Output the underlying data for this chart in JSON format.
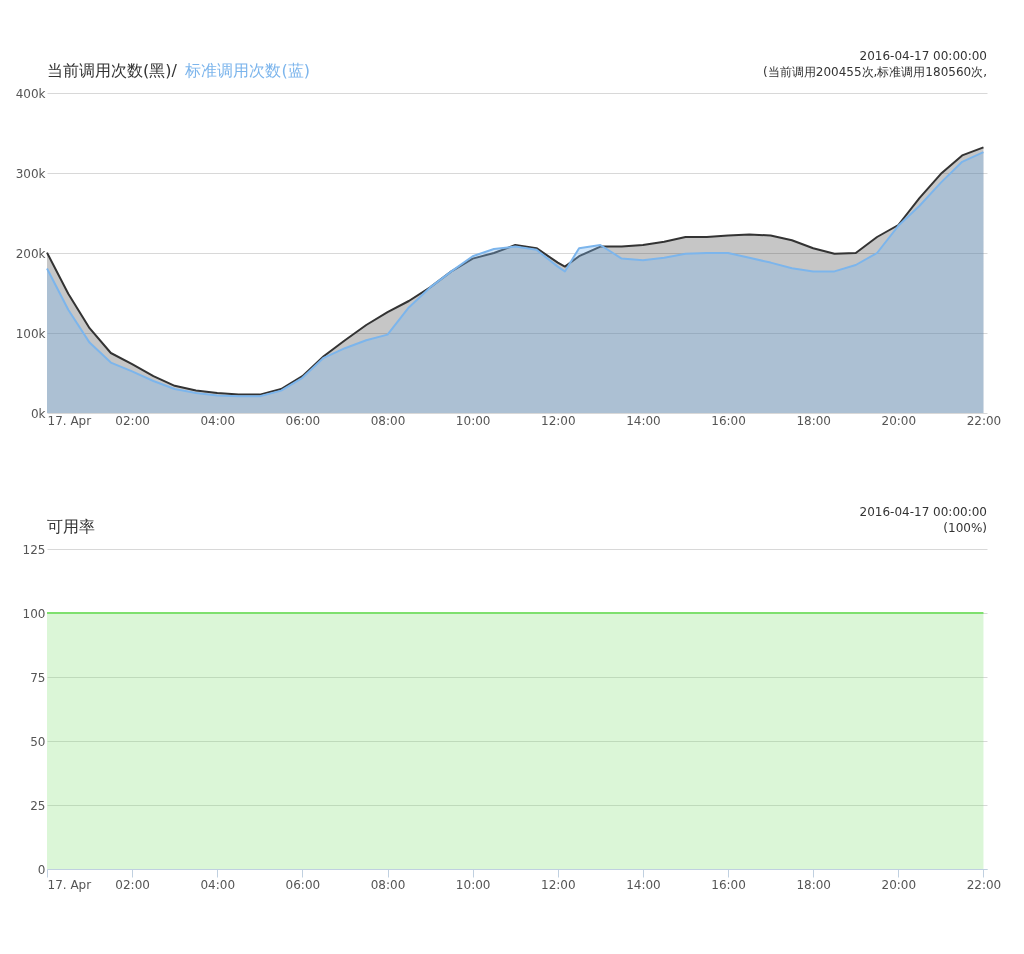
{
  "chart_data": [
    {
      "type": "area",
      "legend": "top left",
      "grid": "y",
      "x": [
        "2016-04-17T00:00",
        "2016-04-17T00:30",
        "2016-04-17T01:00",
        "2016-04-17T01:30",
        "2016-04-17T02:00",
        "2016-04-17T02:30",
        "2016-04-17T03:00",
        "2016-04-17T03:30",
        "2016-04-17T04:00",
        "2016-04-17T04:30",
        "2016-04-17T05:00",
        "2016-04-17T05:30",
        "2016-04-17T06:00",
        "2016-04-17T06:30",
        "2016-04-17T07:00",
        "2016-04-17T07:30",
        "2016-04-17T08:00",
        "2016-04-17T08:30",
        "2016-04-17T09:00",
        "2016-04-17T09:30",
        "2016-04-17T10:00",
        "2016-04-17T10:30",
        "2016-04-17T11:00",
        "2016-04-17T11:30",
        "2016-04-17T12:00",
        "2016-04-17T12:10",
        "2016-04-17T12:30",
        "2016-04-17T13:00",
        "2016-04-17T13:30",
        "2016-04-17T14:00",
        "2016-04-17T14:30",
        "2016-04-17T15:00",
        "2016-04-17T15:30",
        "2016-04-17T16:00",
        "2016-04-17T16:30",
        "2016-04-17T17:00",
        "2016-04-17T17:30",
        "2016-04-17T18:00",
        "2016-04-17T18:30",
        "2016-04-17T19:00",
        "2016-04-17T19:30",
        "2016-04-17T20:00",
        "2016-04-17T20:30",
        "2016-04-17T21:00",
        "2016-04-17T21:30",
        "2016-04-17T22:00"
      ],
      "series": [
        {
          "name": "当前调用次数(黑)/",
          "color": "#333333",
          "values": [
            200455,
            149000,
            106000,
            75000,
            61000,
            46000,
            34000,
            28000,
            25000,
            23000,
            23000,
            30000,
            46000,
            71000,
            91000,
            110000,
            126000,
            140000,
            157000,
            177000,
            193000,
            200000,
            210000,
            206000,
            188000,
            183000,
            196000,
            208000,
            208000,
            210000,
            214000,
            220000,
            220000,
            222000,
            223000,
            222000,
            216000,
            206000,
            199000,
            200000,
            220000,
            235000,
            269000,
            299000,
            322000,
            332000
          ]
        },
        {
          "name": "标准调用次数(蓝)",
          "color": "#7cb5ec",
          "values": [
            180560,
            129000,
            88000,
            63000,
            52000,
            40000,
            30000,
            25000,
            22000,
            21000,
            21000,
            28000,
            44000,
            69000,
            81000,
            91000,
            98000,
            132000,
            157000,
            177000,
            196000,
            205000,
            208000,
            204000,
            183000,
            177000,
            206000,
            210000,
            193000,
            191000,
            194000,
            199000,
            200000,
            200000,
            194000,
            188000,
            181000,
            177000,
            177000,
            185000,
            200000,
            234000,
            259000,
            288000,
            314000,
            326000
          ]
        }
      ],
      "xlim": [
        "2016-04-17T00:00",
        "2016-04-17T22:05"
      ],
      "xticks": [
        {
          "value": "2016-04-17T00:00",
          "label": "17. Apr"
        },
        {
          "value": "2016-04-17T02:00",
          "label": "02:00"
        },
        {
          "value": "2016-04-17T04:00",
          "label": "04:00"
        },
        {
          "value": "2016-04-17T06:00",
          "label": "06:00"
        },
        {
          "value": "2016-04-17T08:00",
          "label": "08:00"
        },
        {
          "value": "2016-04-17T10:00",
          "label": "10:00"
        },
        {
          "value": "2016-04-17T12:00",
          "label": "12:00"
        },
        {
          "value": "2016-04-17T14:00",
          "label": "14:00"
        },
        {
          "value": "2016-04-17T16:00",
          "label": "16:00"
        },
        {
          "value": "2016-04-17T18:00",
          "label": "18:00"
        },
        {
          "value": "2016-04-17T20:00",
          "label": "20:00"
        },
        {
          "value": "2016-04-17T22:00",
          "label": "22:00"
        }
      ],
      "ylim": [
        0,
        400000
      ],
      "yticks": [
        {
          "value": 0,
          "label": "0k"
        },
        {
          "value": 100000,
          "label": "100k"
        },
        {
          "value": 200000,
          "label": "200k"
        },
        {
          "value": 300000,
          "label": "300k"
        },
        {
          "value": 400000,
          "label": "400k"
        }
      ],
      "annotations": [
        "2016-04-17 00:00:00",
        "(当前调用200455次,标准调用180560次,"
      ]
    },
    {
      "type": "area",
      "title": "可用率",
      "grid": "y",
      "x": [
        "2016-04-17T00:00",
        "2016-04-17T22:00"
      ],
      "series": [
        {
          "color": "#7ee06e",
          "values": [
            100,
            100
          ]
        }
      ],
      "xlim": [
        "2016-04-17T00:00",
        "2016-04-17T22:05"
      ],
      "xticks": [
        {
          "value": "2016-04-17T00:00",
          "label": "17. Apr"
        },
        {
          "value": "2016-04-17T02:00",
          "label": "02:00"
        },
        {
          "value": "2016-04-17T04:00",
          "label": "04:00"
        },
        {
          "value": "2016-04-17T06:00",
          "label": "06:00"
        },
        {
          "value": "2016-04-17T08:00",
          "label": "08:00"
        },
        {
          "value": "2016-04-17T10:00",
          "label": "10:00"
        },
        {
          "value": "2016-04-17T12:00",
          "label": "12:00"
        },
        {
          "value": "2016-04-17T14:00",
          "label": "14:00"
        },
        {
          "value": "2016-04-17T16:00",
          "label": "16:00"
        },
        {
          "value": "2016-04-17T18:00",
          "label": "18:00"
        },
        {
          "value": "2016-04-17T20:00",
          "label": "20:00"
        },
        {
          "value": "2016-04-17T22:00",
          "label": "22:00"
        }
      ],
      "ylim": [
        0,
        125
      ],
      "yticks": [
        0,
        25,
        50,
        75,
        100,
        125
      ],
      "annotations": [
        "2016-04-17 00:00:00",
        "(100%)"
      ]
    }
  ]
}
